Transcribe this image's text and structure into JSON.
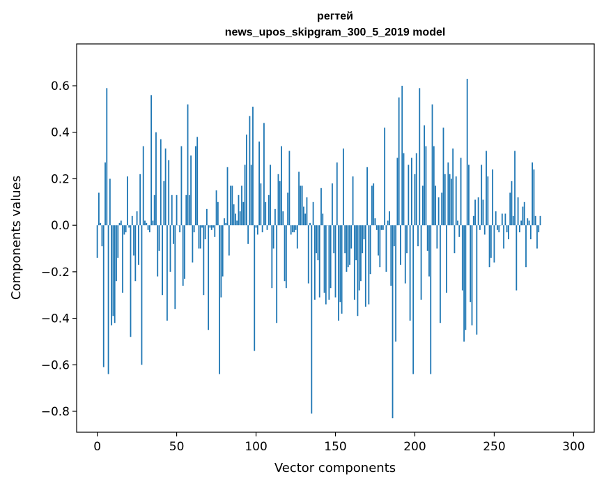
{
  "chart_data": {
    "type": "bar",
    "title": "регтей",
    "subtitle": "news_upos_skipgram_300_5_2019 model",
    "xlabel": "Vector components",
    "ylabel": "Components values",
    "xlim": [
      -13,
      313
    ],
    "ylim": [
      -0.89,
      0.78
    ],
    "xticks": [
      0,
      50,
      100,
      150,
      200,
      250,
      300
    ],
    "yticks": [
      -0.8,
      -0.6,
      -0.4,
      -0.2,
      0.0,
      0.2,
      0.4,
      0.6
    ],
    "ytick_labels": [
      "−0.8",
      "−0.6",
      "−0.4",
      "−0.2",
      "0.0",
      "0.2",
      "0.4",
      "0.6"
    ],
    "grid": false,
    "bar_color": "#1f77b4",
    "x_start": 0,
    "values": [
      -0.14,
      0.14,
      0.01,
      -0.09,
      -0.61,
      0.27,
      0.59,
      -0.64,
      0.2,
      -0.43,
      -0.39,
      -0.42,
      -0.24,
      -0.14,
      0.01,
      0.02,
      -0.29,
      -0.04,
      -0.03,
      0.21,
      -0.01,
      -0.48,
      0.04,
      -0.13,
      -0.24,
      0.06,
      -0.17,
      0.22,
      -0.6,
      0.34,
      0.02,
      0.01,
      -0.02,
      -0.03,
      0.56,
      0.02,
      0.13,
      0.4,
      -0.22,
      -0.11,
      0.37,
      -0.3,
      0.19,
      0.33,
      -0.41,
      0.28,
      -0.2,
      0.13,
      -0.08,
      -0.36,
      0.13,
      0.0,
      -0.03,
      0.34,
      -0.26,
      -0.23,
      0.13,
      0.52,
      0.13,
      0.3,
      -0.16,
      -0.03,
      0.34,
      0.38,
      -0.1,
      -0.1,
      -0.01,
      -0.3,
      -0.06,
      0.07,
      -0.45,
      -0.01,
      -0.02,
      -0.01,
      -0.05,
      0.15,
      0.1,
      -0.64,
      -0.31,
      -0.22,
      0.03,
      0.01,
      0.25,
      -0.13,
      0.17,
      0.17,
      0.09,
      0.05,
      0.02,
      0.13,
      0.06,
      0.17,
      0.1,
      0.26,
      0.39,
      -0.08,
      0.47,
      0.26,
      0.51,
      -0.54,
      -0.01,
      -0.04,
      0.36,
      0.18,
      -0.03,
      0.44,
      0.1,
      -0.02,
      0.13,
      0.26,
      -0.27,
      -0.1,
      0.07,
      -0.42,
      0.22,
      0.19,
      0.34,
      0.06,
      -0.24,
      -0.27,
      0.14,
      0.32,
      -0.04,
      -0.03,
      -0.03,
      -0.02,
      -0.1,
      0.23,
      0.17,
      0.17,
      0.08,
      0.05,
      0.12,
      -0.25,
      0.01,
      -0.81,
      0.1,
      -0.32,
      -0.12,
      -0.15,
      -0.31,
      0.16,
      0.05,
      -0.29,
      -0.34,
      0.0,
      -0.32,
      -0.27,
      0.18,
      -0.12,
      -0.31,
      0.27,
      -0.41,
      -0.33,
      -0.38,
      0.33,
      -0.12,
      -0.2,
      -0.18,
      -0.17,
      -0.1,
      0.21,
      -0.32,
      -0.15,
      -0.39,
      -0.28,
      -0.24,
      -0.12,
      -0.06,
      -0.35,
      0.25,
      -0.34,
      -0.21,
      0.17,
      0.18,
      0.03,
      -0.02,
      -0.13,
      -0.18,
      -0.02,
      -0.02,
      0.42,
      -0.2,
      0.02,
      0.06,
      -0.26,
      -0.83,
      -0.09,
      -0.5,
      0.29,
      0.55,
      -0.17,
      0.6,
      0.31,
      -0.25,
      -0.12,
      0.26,
      -0.41,
      0.29,
      -0.64,
      0.22,
      0.31,
      -0.09,
      0.59,
      -0.32,
      0.17,
      0.43,
      0.34,
      -0.11,
      -0.22,
      -0.64,
      0.52,
      0.34,
      0.17,
      -0.1,
      0.12,
      -0.42,
      0.14,
      0.42,
      0.22,
      -0.29,
      0.27,
      0.22,
      0.2,
      0.33,
      -0.12,
      0.21,
      0.02,
      -0.05,
      0.29,
      -0.28,
      -0.5,
      -0.45,
      0.63,
      0.26,
      -0.33,
      -0.43,
      0.04,
      0.11,
      -0.47,
      0.12,
      -0.02,
      0.26,
      0.11,
      -0.04,
      0.32,
      0.21,
      -0.18,
      -0.14,
      0.24,
      -0.16,
      0.06,
      -0.02,
      -0.03,
      0.0,
      0.05,
      -0.1,
      0.05,
      -0.03,
      -0.06,
      0.14,
      0.19,
      0.04,
      0.32,
      -0.28,
      0.12,
      -0.03,
      0.02,
      0.08,
      0.1,
      -0.18,
      0.03,
      0.02,
      -0.06,
      0.27,
      0.24,
      0.04,
      -0.1,
      -0.03,
      0.04
    ]
  }
}
